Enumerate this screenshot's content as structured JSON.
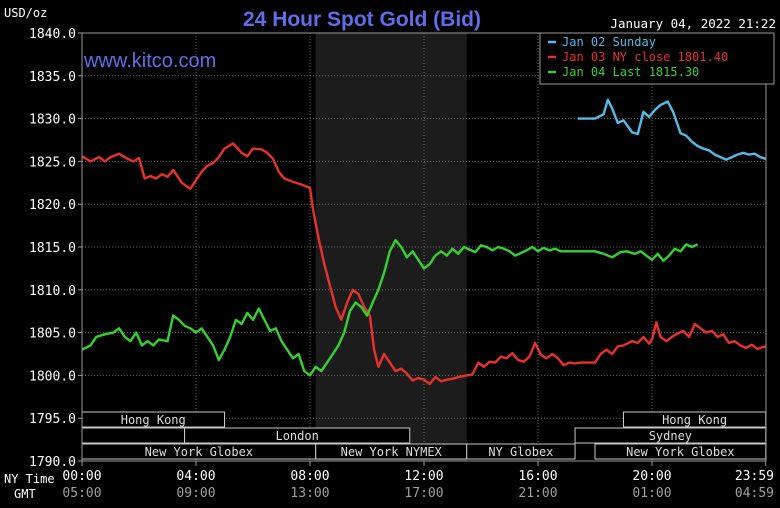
{
  "chart_data": {
    "type": "line",
    "title": "24 Hour Spot Gold (Bid)",
    "ylabel": "USD/oz",
    "timestamp": "January 04, 2022 21:22",
    "watermark": "www.kitco.com",
    "ylim": [
      1790,
      1840
    ],
    "y_ticks": [
      "1840.0",
      "1835.0",
      "1830.0",
      "1825.0",
      "1820.0",
      "1815.0",
      "1810.0",
      "1805.0",
      "1800.0",
      "1795.0",
      "1790.0"
    ],
    "x_ticks_ny": [
      "00:00",
      "04:00",
      "08:00",
      "12:00",
      "16:00",
      "20:00",
      "23:59"
    ],
    "x_ticks_gmt": [
      "05:00",
      "09:00",
      "13:00",
      "17:00",
      "21:00",
      "01:00",
      "04:59"
    ],
    "x_row_labels": {
      "ny": "NY Time",
      "gmt": "GMT"
    },
    "grid": true,
    "legend_position": "top-right",
    "shaded_session": {
      "from_hour": 8.2,
      "to_hour": 13.5
    },
    "series": [
      {
        "name": "Jan 02 Sunday",
        "color": "#55bbe6",
        "points": [
          [
            17.4,
            1830.0
          ],
          [
            18.0,
            1830.0
          ],
          [
            18.3,
            1830.5
          ],
          [
            18.45,
            1832.2
          ],
          [
            18.6,
            1831.2
          ],
          [
            18.8,
            1829.5
          ],
          [
            19.0,
            1829.8
          ],
          [
            19.3,
            1828.4
          ],
          [
            19.5,
            1828.2
          ],
          [
            19.7,
            1830.8
          ],
          [
            19.9,
            1830.2
          ],
          [
            20.1,
            1831.0
          ],
          [
            20.3,
            1831.6
          ],
          [
            20.55,
            1832.0
          ],
          [
            20.75,
            1830.7
          ],
          [
            21.0,
            1828.3
          ],
          [
            21.2,
            1828.0
          ],
          [
            21.4,
            1827.3
          ],
          [
            21.6,
            1826.8
          ],
          [
            21.8,
            1826.5
          ],
          [
            22.0,
            1826.3
          ],
          [
            22.2,
            1825.8
          ],
          [
            22.4,
            1825.5
          ],
          [
            22.6,
            1825.2
          ],
          [
            22.8,
            1825.5
          ],
          [
            23.0,
            1825.8
          ],
          [
            23.2,
            1826.0
          ],
          [
            23.4,
            1825.8
          ],
          [
            23.6,
            1825.9
          ],
          [
            23.8,
            1825.5
          ],
          [
            23.99,
            1825.3
          ]
        ]
      },
      {
        "name": "Jan 03 NY close 1801.40",
        "color": "#e8312b",
        "points": [
          [
            0.0,
            1825.6
          ],
          [
            0.3,
            1825.0
          ],
          [
            0.6,
            1825.5
          ],
          [
            0.8,
            1825.0
          ],
          [
            1.0,
            1825.5
          ],
          [
            1.3,
            1825.9
          ],
          [
            1.6,
            1825.3
          ],
          [
            1.8,
            1825.0
          ],
          [
            2.0,
            1825.4
          ],
          [
            2.2,
            1823.0
          ],
          [
            2.4,
            1823.3
          ],
          [
            2.6,
            1823.0
          ],
          [
            2.8,
            1823.5
          ],
          [
            3.0,
            1823.2
          ],
          [
            3.2,
            1824.0
          ],
          [
            3.5,
            1822.5
          ],
          [
            3.8,
            1821.8
          ],
          [
            4.0,
            1822.8
          ],
          [
            4.2,
            1823.8
          ],
          [
            4.4,
            1824.5
          ],
          [
            4.6,
            1824.8
          ],
          [
            4.8,
            1825.5
          ],
          [
            5.0,
            1826.5
          ],
          [
            5.3,
            1827.1
          ],
          [
            5.6,
            1826.0
          ],
          [
            5.8,
            1825.6
          ],
          [
            6.0,
            1826.5
          ],
          [
            6.3,
            1826.4
          ],
          [
            6.5,
            1826.0
          ],
          [
            6.7,
            1825.3
          ],
          [
            6.9,
            1823.8
          ],
          [
            7.1,
            1823.0
          ],
          [
            7.4,
            1822.6
          ],
          [
            7.7,
            1822.3
          ],
          [
            8.0,
            1821.9
          ],
          [
            8.1,
            1819.5
          ],
          [
            8.3,
            1816.0
          ],
          [
            8.5,
            1813.0
          ],
          [
            8.7,
            1810.5
          ],
          [
            8.9,
            1808.0
          ],
          [
            9.1,
            1806.5
          ],
          [
            9.3,
            1808.5
          ],
          [
            9.5,
            1810.0
          ],
          [
            9.7,
            1809.5
          ],
          [
            9.9,
            1808.0
          ],
          [
            10.1,
            1807.0
          ],
          [
            10.25,
            1803.0
          ],
          [
            10.4,
            1801.0
          ],
          [
            10.6,
            1802.5
          ],
          [
            10.8,
            1801.5
          ],
          [
            11.0,
            1800.5
          ],
          [
            11.2,
            1800.8
          ],
          [
            11.4,
            1800.2
          ],
          [
            11.6,
            1799.4
          ],
          [
            11.8,
            1799.7
          ],
          [
            12.0,
            1799.5
          ],
          [
            12.2,
            1799.0
          ],
          [
            12.4,
            1799.8
          ],
          [
            12.6,
            1799.3
          ],
          [
            12.8,
            1799.5
          ],
          [
            13.0,
            1799.6
          ],
          [
            13.2,
            1799.8
          ],
          [
            13.5,
            1800.0
          ],
          [
            13.7,
            1800.1
          ],
          [
            13.9,
            1801.5
          ],
          [
            14.1,
            1801.0
          ],
          [
            14.3,
            1801.6
          ],
          [
            14.5,
            1801.5
          ],
          [
            14.7,
            1802.2
          ],
          [
            14.9,
            1802.0
          ],
          [
            15.1,
            1802.6
          ],
          [
            15.3,
            1801.8
          ],
          [
            15.5,
            1801.6
          ],
          [
            15.7,
            1802.2
          ],
          [
            15.9,
            1803.8
          ],
          [
            16.1,
            1802.4
          ],
          [
            16.3,
            1802.0
          ],
          [
            16.5,
            1802.5
          ],
          [
            16.7,
            1802.0
          ],
          [
            16.9,
            1801.2
          ],
          [
            17.1,
            1801.5
          ],
          [
            17.3,
            1801.4
          ],
          [
            17.5,
            1801.5
          ],
          [
            17.8,
            1801.5
          ],
          [
            18.0,
            1801.5
          ],
          [
            18.2,
            1802.5
          ],
          [
            18.4,
            1803.0
          ],
          [
            18.6,
            1802.5
          ],
          [
            18.8,
            1803.4
          ],
          [
            19.0,
            1803.5
          ],
          [
            19.3,
            1804.0
          ],
          [
            19.5,
            1803.8
          ],
          [
            19.7,
            1804.5
          ],
          [
            19.9,
            1803.7
          ],
          [
            20.0,
            1804.2
          ],
          [
            20.15,
            1806.2
          ],
          [
            20.3,
            1804.5
          ],
          [
            20.5,
            1804.0
          ],
          [
            20.7,
            1804.5
          ],
          [
            20.9,
            1804.9
          ],
          [
            21.1,
            1805.2
          ],
          [
            21.3,
            1804.5
          ],
          [
            21.5,
            1806.0
          ],
          [
            21.7,
            1805.5
          ],
          [
            21.9,
            1805.0
          ],
          [
            22.1,
            1805.2
          ],
          [
            22.3,
            1804.5
          ],
          [
            22.5,
            1804.8
          ],
          [
            22.7,
            1803.8
          ],
          [
            22.9,
            1804.0
          ],
          [
            23.1,
            1803.5
          ],
          [
            23.3,
            1803.2
          ],
          [
            23.5,
            1803.6
          ],
          [
            23.7,
            1803.1
          ],
          [
            23.99,
            1803.4
          ]
        ]
      },
      {
        "name": "Jan 04 Last 1815.30",
        "color": "#35d12f",
        "points": [
          [
            0.0,
            1803.0
          ],
          [
            0.3,
            1803.5
          ],
          [
            0.5,
            1804.5
          ],
          [
            0.8,
            1804.8
          ],
          [
            1.1,
            1805.0
          ],
          [
            1.3,
            1805.5
          ],
          [
            1.5,
            1804.5
          ],
          [
            1.7,
            1804.0
          ],
          [
            1.9,
            1805.0
          ],
          [
            2.1,
            1803.5
          ],
          [
            2.3,
            1804.0
          ],
          [
            2.5,
            1803.5
          ],
          [
            2.7,
            1804.2
          ],
          [
            3.0,
            1804.0
          ],
          [
            3.2,
            1807.0
          ],
          [
            3.4,
            1806.5
          ],
          [
            3.6,
            1805.8
          ],
          [
            3.8,
            1805.5
          ],
          [
            4.0,
            1805.0
          ],
          [
            4.2,
            1805.5
          ],
          [
            4.4,
            1804.5
          ],
          [
            4.6,
            1803.5
          ],
          [
            4.8,
            1801.8
          ],
          [
            5.0,
            1803.0
          ],
          [
            5.2,
            1804.5
          ],
          [
            5.4,
            1806.5
          ],
          [
            5.6,
            1806.0
          ],
          [
            5.8,
            1807.3
          ],
          [
            6.0,
            1806.5
          ],
          [
            6.2,
            1807.8
          ],
          [
            6.4,
            1806.5
          ],
          [
            6.6,
            1805.2
          ],
          [
            6.8,
            1805.5
          ],
          [
            7.0,
            1804.0
          ],
          [
            7.2,
            1803.0
          ],
          [
            7.4,
            1802.0
          ],
          [
            7.6,
            1802.5
          ],
          [
            7.8,
            1800.5
          ],
          [
            8.0,
            1800.0
          ],
          [
            8.2,
            1801.0
          ],
          [
            8.4,
            1800.5
          ],
          [
            8.6,
            1801.5
          ],
          [
            8.8,
            1802.5
          ],
          [
            9.0,
            1803.5
          ],
          [
            9.2,
            1805.0
          ],
          [
            9.4,
            1807.5
          ],
          [
            9.6,
            1808.5
          ],
          [
            9.8,
            1808.0
          ],
          [
            10.0,
            1807.0
          ],
          [
            10.2,
            1808.5
          ],
          [
            10.4,
            1810.0
          ],
          [
            10.6,
            1812.0
          ],
          [
            10.8,
            1814.5
          ],
          [
            11.0,
            1815.8
          ],
          [
            11.2,
            1815.0
          ],
          [
            11.4,
            1813.8
          ],
          [
            11.6,
            1814.5
          ],
          [
            11.8,
            1813.5
          ],
          [
            12.0,
            1812.5
          ],
          [
            12.2,
            1813.0
          ],
          [
            12.4,
            1814.0
          ],
          [
            12.6,
            1814.5
          ],
          [
            12.8,
            1814.0
          ],
          [
            13.0,
            1814.8
          ],
          [
            13.2,
            1814.2
          ],
          [
            13.4,
            1815.0
          ],
          [
            13.6,
            1814.7
          ],
          [
            13.8,
            1814.4
          ],
          [
            14.0,
            1815.2
          ],
          [
            14.2,
            1815.0
          ],
          [
            14.4,
            1814.6
          ],
          [
            14.6,
            1815.0
          ],
          [
            14.8,
            1814.8
          ],
          [
            15.0,
            1814.5
          ],
          [
            15.2,
            1814.0
          ],
          [
            15.4,
            1814.3
          ],
          [
            15.6,
            1814.6
          ],
          [
            15.8,
            1815.0
          ],
          [
            16.0,
            1814.5
          ],
          [
            16.2,
            1814.9
          ],
          [
            16.4,
            1814.6
          ],
          [
            16.6,
            1814.8
          ],
          [
            16.8,
            1814.5
          ],
          [
            17.0,
            1814.5
          ],
          [
            17.5,
            1814.5
          ],
          [
            18.0,
            1814.5
          ],
          [
            18.3,
            1814.2
          ],
          [
            18.6,
            1813.8
          ],
          [
            18.9,
            1814.4
          ],
          [
            19.1,
            1814.5
          ],
          [
            19.4,
            1814.2
          ],
          [
            19.6,
            1814.5
          ],
          [
            19.8,
            1814.0
          ],
          [
            20.0,
            1813.5
          ],
          [
            20.2,
            1814.2
          ],
          [
            20.4,
            1813.4
          ],
          [
            20.6,
            1814.0
          ],
          [
            20.8,
            1814.8
          ],
          [
            21.0,
            1814.5
          ],
          [
            21.2,
            1815.3
          ],
          [
            21.4,
            1815.0
          ],
          [
            21.6,
            1815.3
          ]
        ]
      }
    ],
    "sessions": [
      {
        "name": "Hong Kong",
        "row": 0,
        "start": 0.0,
        "end": 5.0
      },
      {
        "name": "Hong Kong",
        "row": 0,
        "start": 19.0,
        "end": 23.99
      },
      {
        "name": "London",
        "row": 1,
        "start": 0.0,
        "end": 3.6,
        "label_hidden": true
      },
      {
        "name": "London",
        "row": 1,
        "start": 3.6,
        "end": 11.5
      },
      {
        "name": "Sydney",
        "row": 1,
        "start": 17.3,
        "end": 23.99
      },
      {
        "name": "New York Globex",
        "row": 2,
        "start": 0.0,
        "end": 8.2
      },
      {
        "name": "New York NYMEX",
        "row": 2,
        "start": 8.2,
        "end": 13.5
      },
      {
        "name": "NY Globex",
        "row": 2,
        "start": 13.5,
        "end": 17.3
      },
      {
        "name": "New York Globex",
        "row": 2,
        "start": 18.0,
        "end": 23.99
      }
    ]
  }
}
